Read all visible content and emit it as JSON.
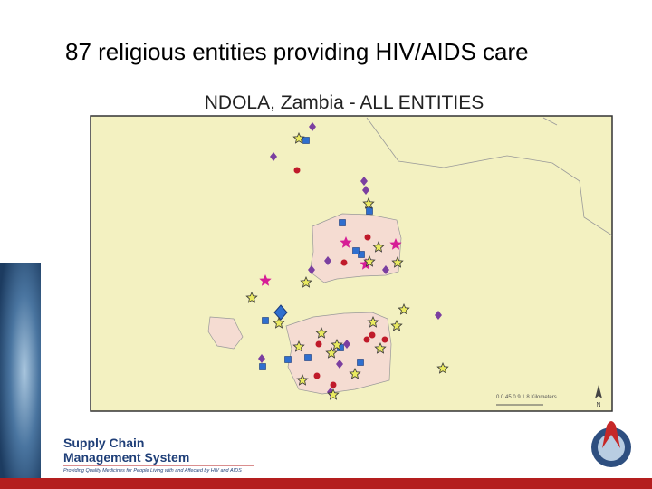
{
  "slide": {
    "title": "87 religious entities providing HIV/AIDS care"
  },
  "map": {
    "title": "NDOLA, Zambia - ALL ENTITIES",
    "scale_label": "0 0.45 0.9     1.8 Kilometers",
    "north": "N"
  },
  "footer": {
    "logo_line1": "Supply Chain",
    "logo_line2": "Management System",
    "tagline": "Providing Quality Medicines for People Living with and Affected by HIV and AIDS"
  }
}
